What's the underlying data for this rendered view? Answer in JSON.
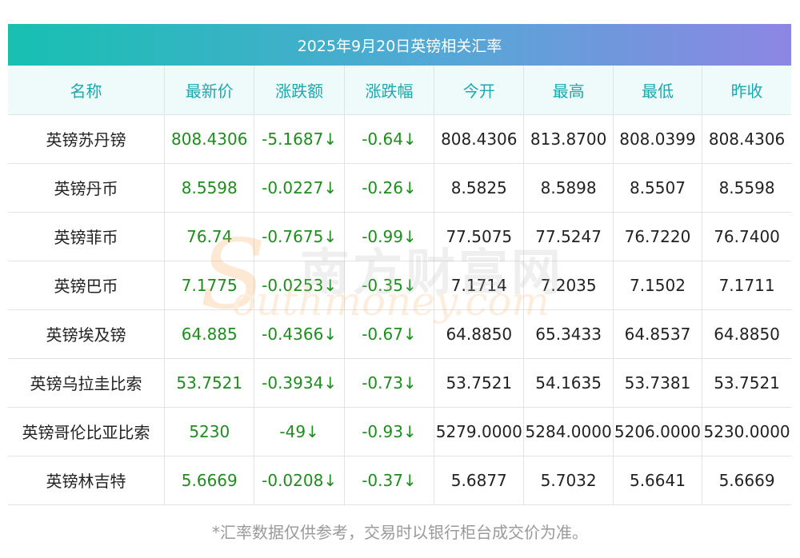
{
  "title": "2025年9月20日英镑相关汇率",
  "columns": [
    "名称",
    "最新价",
    "涨跌额",
    "涨跌幅",
    "今开",
    "最高",
    "最低",
    "昨收"
  ],
  "rows": [
    {
      "name": "英镑苏丹镑",
      "latest": "808.4306",
      "change": "-5.1687↓",
      "pct": "-0.64↓",
      "open": "808.4306",
      "high": "813.8700",
      "low": "808.0399",
      "prev": "808.4306"
    },
    {
      "name": "英镑丹币",
      "latest": "8.5598",
      "change": "-0.0227↓",
      "pct": "-0.26↓",
      "open": "8.5825",
      "high": "8.5898",
      "low": "8.5507",
      "prev": "8.5598"
    },
    {
      "name": "英镑菲币",
      "latest": "76.74",
      "change": "-0.7675↓",
      "pct": "-0.99↓",
      "open": "77.5075",
      "high": "77.5247",
      "low": "76.7220",
      "prev": "76.7400"
    },
    {
      "name": "英镑巴币",
      "latest": "7.1775",
      "change": "-0.0253↓",
      "pct": "-0.35↓",
      "open": "7.1714",
      "high": "7.2035",
      "low": "7.1502",
      "prev": "7.1711"
    },
    {
      "name": "英镑埃及镑",
      "latest": "64.885",
      "change": "-0.4366↓",
      "pct": "-0.67↓",
      "open": "64.8850",
      "high": "65.3433",
      "low": "64.8537",
      "prev": "64.8850"
    },
    {
      "name": "英镑乌拉圭比索",
      "latest": "53.7521",
      "change": "-0.3934↓",
      "pct": "-0.73↓",
      "open": "53.7521",
      "high": "54.1635",
      "low": "53.7381",
      "prev": "53.7521"
    },
    {
      "name": "英镑哥伦比亚比索",
      "latest": "5230",
      "change": "-49↓",
      "pct": "-0.93↓",
      "open": "5279.0000",
      "high": "5284.0000",
      "low": "5206.0000",
      "prev": "5230.0000"
    },
    {
      "name": "英镑林吉特",
      "latest": "5.6669",
      "change": "-0.0208↓",
      "pct": "-0.37↓",
      "open": "5.6877",
      "high": "5.7032",
      "low": "5.6641",
      "prev": "5.6669"
    }
  ],
  "footnote": "*汇率数据仅供参考，交易时以银行柜台成交价为准。",
  "watermark": {
    "cn": "南方财富网",
    "en": "outhmoney.com",
    "s": "S"
  },
  "colors": {
    "header_text": "#1aa9ad",
    "change_green": "#1f8c1f",
    "title_gradient_start": "#17c0b1",
    "title_gradient_end": "#8d86e3"
  }
}
